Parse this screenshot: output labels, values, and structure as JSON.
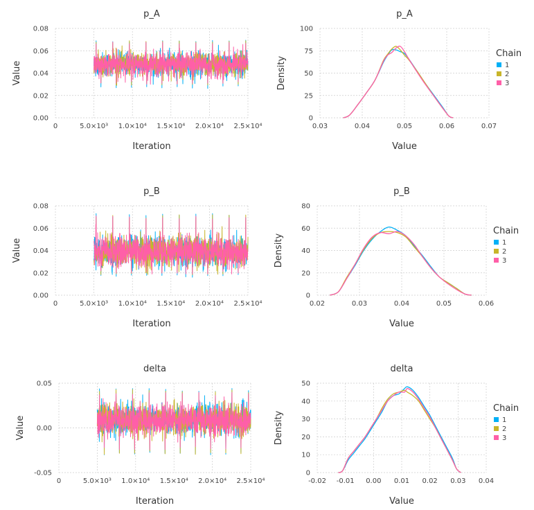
{
  "colors": {
    "chain1": "#00b0f6",
    "chain2": "#c8b52a",
    "chain3": "#ff5fa8",
    "grid": "#cccccc"
  },
  "legend": {
    "title": "Chain",
    "entries": [
      "1",
      "2",
      "3"
    ]
  },
  "chart_data": [
    {
      "id": "trace-p_A",
      "type": "line",
      "title": "p_A",
      "xlabel": "Iteration",
      "ylabel": "Value",
      "xlim": [
        0,
        25000
      ],
      "ylim": [
        0,
        0.08
      ],
      "xticks": [
        0,
        5000,
        10000,
        15000,
        20000,
        25000
      ],
      "xtick_labels": [
        "0",
        "5.0×10³",
        "1.0×10⁴",
        "1.5×10⁴",
        "2.0×10⁴",
        "2.5×10⁴"
      ],
      "yticks": [
        0,
        0.02,
        0.04,
        0.06,
        0.08
      ],
      "ytick_labels": [
        "0.00",
        "0.02",
        "0.04",
        "0.06",
        "0.08"
      ],
      "iterations": [
        5000,
        25000
      ],
      "series": [
        {
          "name": "1",
          "mean": 0.048,
          "sd": 0.0052,
          "min": 0.026,
          "max": 0.07
        },
        {
          "name": "2",
          "mean": 0.048,
          "sd": 0.0052,
          "min": 0.029,
          "max": 0.07
        },
        {
          "name": "3",
          "mean": 0.048,
          "sd": 0.0052,
          "min": 0.03,
          "max": 0.068
        }
      ]
    },
    {
      "id": "density-p_A",
      "type": "line",
      "title": "p_A",
      "xlabel": "Value",
      "ylabel": "Density",
      "xlim": [
        0.03,
        0.07
      ],
      "ylim": [
        0,
        100
      ],
      "xticks": [
        0.03,
        0.04,
        0.05,
        0.06,
        0.07
      ],
      "xtick_labels": [
        "0.03",
        "0.04",
        "0.05",
        "0.06",
        "0.07"
      ],
      "yticks": [
        0,
        25,
        50,
        75,
        100
      ],
      "ytick_labels": [
        "0",
        "25",
        "50",
        "75",
        "100"
      ],
      "series": [
        {
          "name": "1",
          "x": [
            0.0355,
            0.037,
            0.039,
            0.041,
            0.043,
            0.045,
            0.046,
            0.047,
            0.048,
            0.049,
            0.05,
            0.051,
            0.053,
            0.055,
            0.057,
            0.059,
            0.0605,
            0.0615
          ],
          "y": [
            0,
            3,
            15,
            28,
            42,
            62,
            70,
            76,
            76,
            74,
            72,
            66,
            52,
            38,
            25,
            12,
            2,
            0
          ]
        },
        {
          "name": "2",
          "x": [
            0.0355,
            0.037,
            0.039,
            0.041,
            0.043,
            0.045,
            0.046,
            0.047,
            0.048,
            0.049,
            0.05,
            0.051,
            0.053,
            0.055,
            0.057,
            0.059,
            0.0605,
            0.0615
          ],
          "y": [
            0,
            3,
            15,
            28,
            42,
            64,
            71,
            77,
            80,
            76,
            70,
            65,
            52,
            38,
            24,
            11,
            2,
            0
          ]
        },
        {
          "name": "3",
          "x": [
            0.0355,
            0.037,
            0.039,
            0.041,
            0.043,
            0.045,
            0.046,
            0.047,
            0.048,
            0.049,
            0.05,
            0.051,
            0.053,
            0.055,
            0.057,
            0.059,
            0.0605,
            0.0615
          ],
          "y": [
            0,
            3,
            15,
            28,
            42,
            63,
            70,
            73,
            78,
            80,
            74,
            66,
            51,
            37,
            24,
            11,
            2,
            0
          ]
        }
      ]
    },
    {
      "id": "trace-p_B",
      "type": "line",
      "title": "p_B",
      "xlabel": "Iteration",
      "ylabel": "Value",
      "xlim": [
        0,
        25000
      ],
      "ylim": [
        0,
        0.08
      ],
      "xticks": [
        0,
        5000,
        10000,
        15000,
        20000,
        25000
      ],
      "xtick_labels": [
        "0",
        "5.0×10³",
        "1.0×10⁴",
        "1.5×10⁴",
        "2.0×10⁴",
        "2.5×10⁴"
      ],
      "yticks": [
        0,
        0.02,
        0.04,
        0.06,
        0.08
      ],
      "ytick_labels": [
        "0.00",
        "0.02",
        "0.04",
        "0.06",
        "0.08"
      ],
      "iterations": [
        5000,
        25000
      ],
      "series": [
        {
          "name": "1",
          "mean": 0.039,
          "sd": 0.0068,
          "min": 0.016,
          "max": 0.073
        },
        {
          "name": "2",
          "mean": 0.039,
          "sd": 0.0068,
          "min": 0.018,
          "max": 0.072
        },
        {
          "name": "3",
          "mean": 0.039,
          "sd": 0.0068,
          "min": 0.019,
          "max": 0.071
        }
      ]
    },
    {
      "id": "density-p_B",
      "type": "line",
      "title": "p_B",
      "xlabel": "Value",
      "ylabel": "Density",
      "xlim": [
        0.02,
        0.06
      ],
      "ylim": [
        0,
        80
      ],
      "xticks": [
        0.02,
        0.03,
        0.04,
        0.05,
        0.06
      ],
      "xtick_labels": [
        "0.02",
        "0.03",
        "0.04",
        "0.05",
        "0.06"
      ],
      "yticks": [
        0,
        20,
        40,
        60,
        80
      ],
      "ytick_labels": [
        "0",
        "20",
        "40",
        "60",
        "80"
      ],
      "series": [
        {
          "name": "1",
          "x": [
            0.023,
            0.025,
            0.027,
            0.029,
            0.031,
            0.033,
            0.035,
            0.037,
            0.039,
            0.041,
            0.043,
            0.045,
            0.047,
            0.049,
            0.051,
            0.053,
            0.055,
            0.0565
          ],
          "y": [
            0,
            3,
            15,
            27,
            40,
            50,
            57,
            61,
            58,
            53,
            44,
            35,
            25,
            16,
            11,
            6,
            1,
            0
          ]
        },
        {
          "name": "2",
          "x": [
            0.023,
            0.025,
            0.027,
            0.029,
            0.031,
            0.033,
            0.035,
            0.037,
            0.039,
            0.041,
            0.043,
            0.045,
            0.047,
            0.049,
            0.051,
            0.053,
            0.055,
            0.0565
          ],
          "y": [
            0,
            3,
            16,
            28,
            41,
            51,
            56,
            57,
            56,
            52,
            43,
            34,
            24,
            16,
            11,
            6,
            1,
            0
          ]
        },
        {
          "name": "3",
          "x": [
            0.023,
            0.025,
            0.027,
            0.029,
            0.031,
            0.033,
            0.035,
            0.037,
            0.039,
            0.041,
            0.043,
            0.045,
            0.047,
            0.049,
            0.051,
            0.053,
            0.055,
            0.0565
          ],
          "y": [
            0,
            3,
            15,
            28,
            42,
            52,
            56,
            55,
            57,
            53,
            45,
            34,
            24,
            16,
            10,
            5,
            1,
            0
          ]
        }
      ]
    },
    {
      "id": "trace-delta",
      "type": "line",
      "title": "delta",
      "xlabel": "Iteration",
      "ylabel": "Value",
      "xlim": [
        0,
        25000
      ],
      "ylim": [
        -0.05,
        0.05
      ],
      "xticks": [
        0,
        5000,
        10000,
        15000,
        20000,
        25000
      ],
      "xtick_labels": [
        "0",
        "5.0×10³",
        "1.0×10⁴",
        "1.5×10⁴",
        "2.0×10⁴",
        "2.5×10⁴"
      ],
      "yticks": [
        -0.05,
        0,
        0.05
      ],
      "ytick_labels": [
        "-0.05",
        "0.00",
        "0.05"
      ],
      "iterations": [
        5000,
        25000
      ],
      "series": [
        {
          "name": "1",
          "mean": 0.009,
          "sd": 0.0085,
          "min": -0.031,
          "max": 0.045
        },
        {
          "name": "2",
          "mean": 0.009,
          "sd": 0.0085,
          "min": -0.03,
          "max": 0.043
        },
        {
          "name": "3",
          "mean": 0.009,
          "sd": 0.0085,
          "min": -0.025,
          "max": 0.04
        }
      ]
    },
    {
      "id": "density-delta",
      "type": "line",
      "title": "delta",
      "xlabel": "Value",
      "ylabel": "Density",
      "xlim": [
        -0.02,
        0.04
      ],
      "ylim": [
        0,
        50
      ],
      "xticks": [
        -0.02,
        -0.01,
        0,
        0.01,
        0.02,
        0.03,
        0.04
      ],
      "xtick_labels": [
        "-0.02",
        "-0.01",
        "0.00",
        "0.01",
        "0.02",
        "0.03",
        "0.04"
      ],
      "yticks": [
        0,
        10,
        20,
        30,
        40,
        50
      ],
      "ytick_labels": [
        "0",
        "10",
        "20",
        "30",
        "40",
        "50"
      ],
      "series": [
        {
          "name": "1",
          "x": [
            -0.0125,
            -0.011,
            -0.009,
            -0.007,
            -0.005,
            -0.003,
            -0.001,
            0.001,
            0.003,
            0.005,
            0.007,
            0.009,
            0.011,
            0.012,
            0.014,
            0.016,
            0.018,
            0.02,
            0.022,
            0.024,
            0.026,
            0.028,
            0.0295,
            0.031
          ],
          "y": [
            0,
            1,
            7,
            11,
            15,
            19,
            24,
            29,
            34,
            40,
            43,
            44,
            47,
            48,
            46,
            42,
            37,
            32,
            26,
            20,
            14,
            8,
            2,
            0
          ]
        },
        {
          "name": "2",
          "x": [
            -0.0125,
            -0.011,
            -0.009,
            -0.007,
            -0.005,
            -0.003,
            -0.001,
            0.001,
            0.003,
            0.005,
            0.007,
            0.009,
            0.011,
            0.012,
            0.014,
            0.016,
            0.018,
            0.02,
            0.022,
            0.024,
            0.026,
            0.028,
            0.0295,
            0.031
          ],
          "y": [
            0,
            1,
            8,
            12,
            16,
            20,
            25,
            30,
            36,
            41,
            44,
            45,
            46,
            45,
            43,
            40,
            35,
            30,
            25,
            19,
            13,
            7,
            2,
            0
          ]
        },
        {
          "name": "3",
          "x": [
            -0.0125,
            -0.011,
            -0.009,
            -0.007,
            -0.005,
            -0.003,
            -0.001,
            0.001,
            0.003,
            0.005,
            0.007,
            0.009,
            0.011,
            0.012,
            0.014,
            0.016,
            0.018,
            0.02,
            0.022,
            0.024,
            0.026,
            0.028,
            0.0295,
            0.031
          ],
          "y": [
            0,
            1,
            8,
            12,
            16,
            20,
            25,
            30,
            35,
            40,
            43,
            45,
            45,
            47,
            45,
            41,
            36,
            31,
            25,
            19,
            13,
            7,
            2,
            0
          ]
        }
      ]
    }
  ]
}
